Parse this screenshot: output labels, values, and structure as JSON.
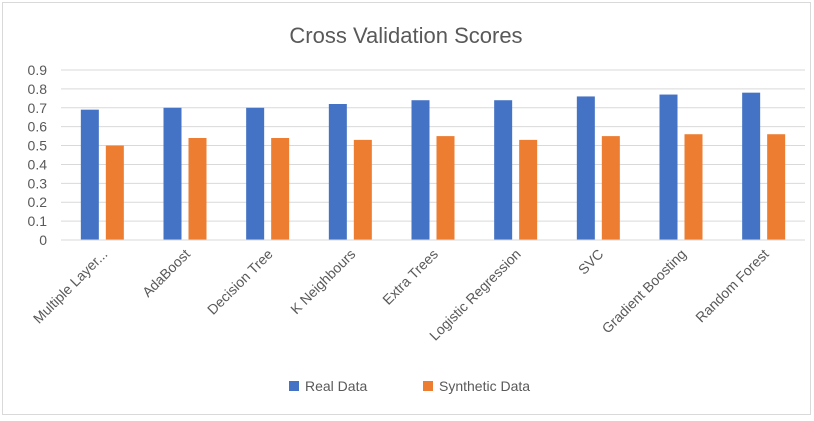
{
  "chart_data": {
    "type": "bar",
    "title": "Cross Validation Scores",
    "xlabel": "",
    "ylabel": "",
    "ylim": [
      0,
      0.9
    ],
    "yticks": [
      "0",
      "0.1",
      "0.2",
      "0.3",
      "0.4",
      "0.5",
      "0.6",
      "0.7",
      "0.8",
      "0.9"
    ],
    "grid": true,
    "legend_position": "bottom",
    "categories": [
      "Multiple Layer...",
      "AdaBoost",
      "Decision Tree",
      "K Neighbours",
      "Extra Trees",
      "Logistic Regression",
      "SVC",
      "Gradient Boosting",
      "Random Forest"
    ],
    "series": [
      {
        "name": "Real Data",
        "color": "#4472c4",
        "values": [
          0.69,
          0.7,
          0.7,
          0.72,
          0.74,
          0.74,
          0.76,
          0.77,
          0.78
        ]
      },
      {
        "name": "Synthetic Data",
        "color": "#ed7d31",
        "values": [
          0.5,
          0.54,
          0.54,
          0.53,
          0.55,
          0.53,
          0.55,
          0.56,
          0.56
        ]
      }
    ]
  }
}
